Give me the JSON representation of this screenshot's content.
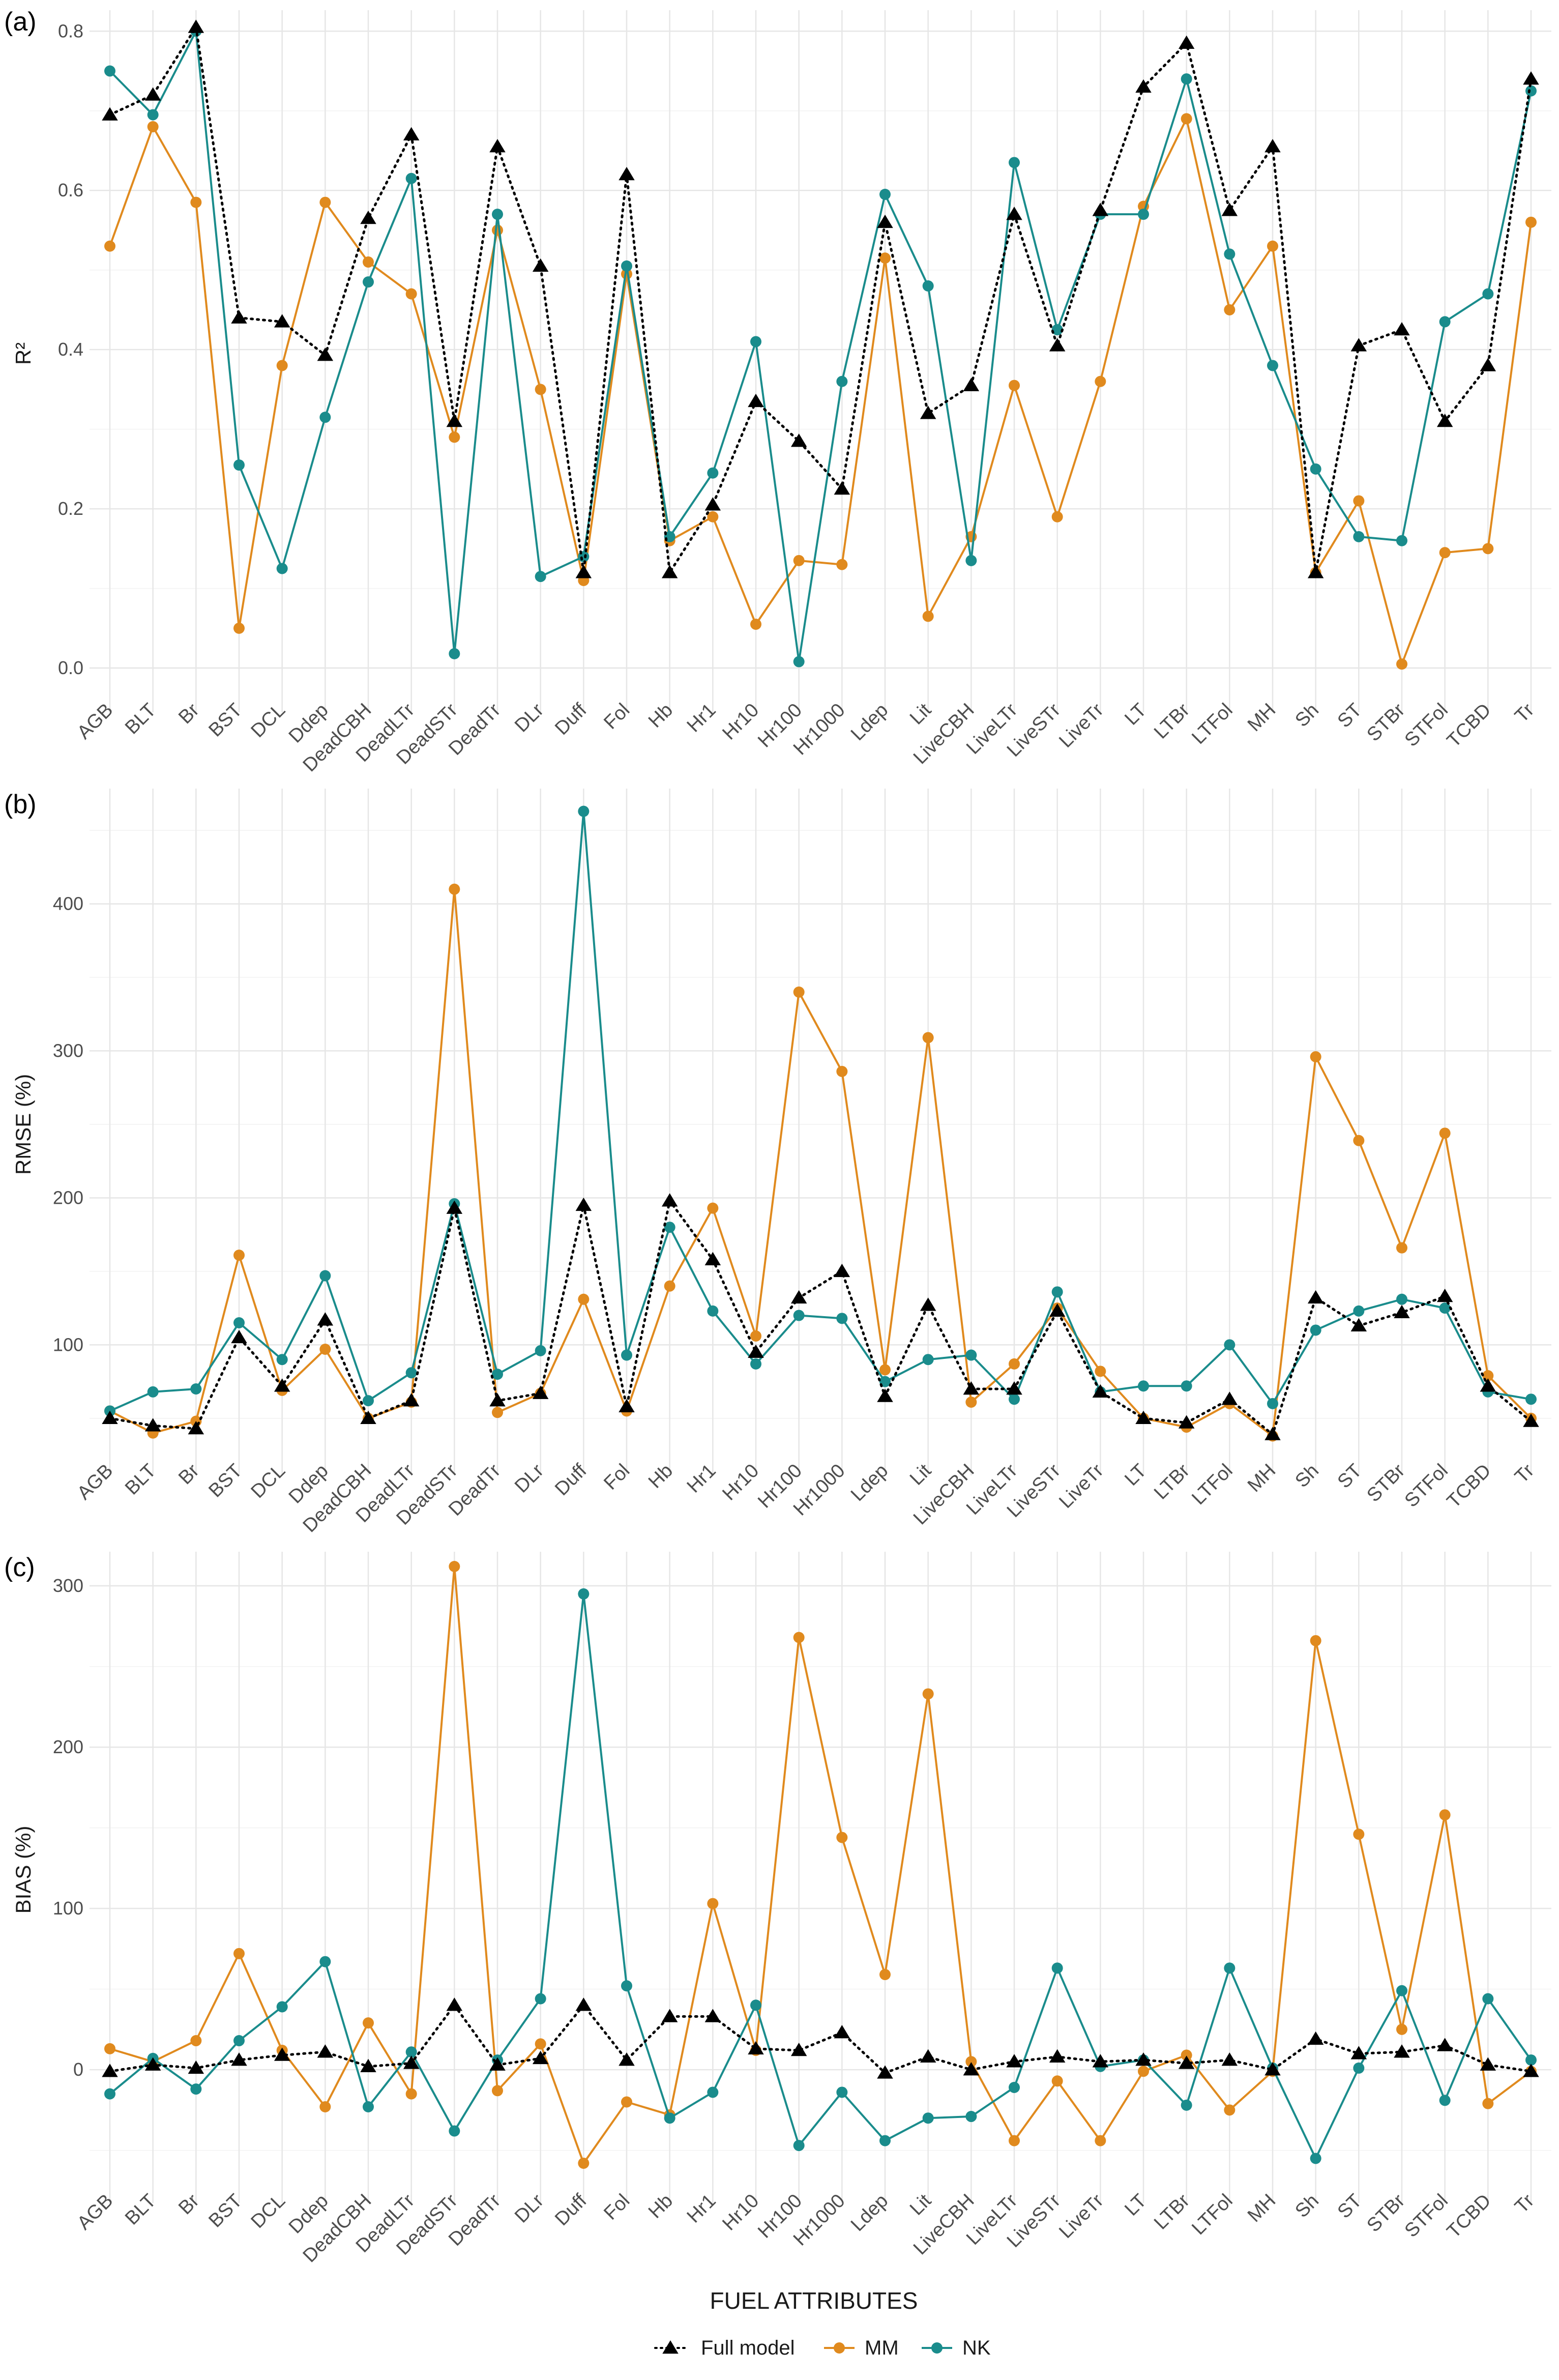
{
  "figure": {
    "x_axis_title": "FUEL ATTRIBUTES",
    "legend": [
      {
        "key": "full",
        "label": "Full model",
        "color": "#000000",
        "marker": "triangle",
        "line": "dotted"
      },
      {
        "key": "mm",
        "label": "MM",
        "color": "#E08A1E",
        "marker": "circle",
        "line": "solid"
      },
      {
        "key": "nk",
        "label": "NK",
        "color": "#1A8C8C",
        "marker": "circle",
        "line": "solid"
      }
    ]
  },
  "chart_data": [
    {
      "type": "line",
      "panel_label": "(a)",
      "title": "",
      "xlabel": "",
      "ylabel": "R²",
      "ylim": [
        -0.03,
        0.82
      ],
      "yticks": [
        0.0,
        0.2,
        0.4,
        0.6,
        0.8
      ],
      "ytick_labels": [
        "0.0",
        "0.2",
        "0.4",
        "0.6",
        "0.8"
      ],
      "categories": [
        "AGB",
        "BLT",
        "Br",
        "BST",
        "DCL",
        "Ddep",
        "DeadCBH",
        "DeadLTr",
        "DeadSTr",
        "DeadTr",
        "DLr",
        "Duff",
        "Fol",
        "Hb",
        "Hr1",
        "Hr10",
        "Hr100",
        "Hr1000",
        "Ldep",
        "Lit",
        "LiveCBH",
        "LiveLTr",
        "LiveSTr",
        "LiveTr",
        "LT",
        "LTBr",
        "LTFol",
        "MH",
        "Sh",
        "ST",
        "STBr",
        "STFol",
        "TCBD",
        "Tr"
      ],
      "series": [
        {
          "name": "Full model",
          "values": [
            0.695,
            0.72,
            0.805,
            0.44,
            0.435,
            0.393,
            0.565,
            0.67,
            0.31,
            0.655,
            0.505,
            0.12,
            0.62,
            0.12,
            0.205,
            0.335,
            0.285,
            0.225,
            0.56,
            0.32,
            0.355,
            0.57,
            0.405,
            0.575,
            0.73,
            0.785,
            0.575,
            0.655,
            0.12,
            0.405,
            0.425,
            0.31,
            0.38,
            0.74
          ]
        },
        {
          "name": "MM",
          "values": [
            0.53,
            0.68,
            0.585,
            0.05,
            0.38,
            0.585,
            0.51,
            0.47,
            0.29,
            0.55,
            0.35,
            0.11,
            0.495,
            0.16,
            0.19,
            0.055,
            0.135,
            0.13,
            0.515,
            0.065,
            0.165,
            0.355,
            0.19,
            0.36,
            0.58,
            0.69,
            0.45,
            0.53,
            0.12,
            0.21,
            0.005,
            0.145,
            0.15,
            0.56
          ]
        },
        {
          "name": "NK",
          "values": [
            0.75,
            0.695,
            0.8,
            0.255,
            0.125,
            0.315,
            0.485,
            0.615,
            0.018,
            0.57,
            0.115,
            0.14,
            0.505,
            0.165,
            0.245,
            0.41,
            0.008,
            0.36,
            0.595,
            0.48,
            0.135,
            0.635,
            0.425,
            0.57,
            0.57,
            0.74,
            0.52,
            0.38,
            0.25,
            0.165,
            0.16,
            0.435,
            0.47,
            0.725
          ]
        }
      ]
    },
    {
      "type": "line",
      "panel_label": "(b)",
      "title": "",
      "xlabel": "",
      "ylabel": "RMSE (%)",
      "ylim": [
        25,
        475
      ],
      "yticks": [
        100,
        200,
        300,
        400
      ],
      "ytick_labels": [
        "100",
        "200",
        "300",
        "400"
      ],
      "categories": [
        "AGB",
        "BLT",
        "Br",
        "BST",
        "DCL",
        "Ddep",
        "DeadCBH",
        "DeadLTr",
        "DeadSTr",
        "DeadTr",
        "DLr",
        "Duff",
        "Fol",
        "Hb",
        "Hr1",
        "Hr10",
        "Hr100",
        "Hr1000",
        "Ldep",
        "Lit",
        "LiveCBH",
        "LiveLTr",
        "LiveSTr",
        "LiveTr",
        "LT",
        "LTBr",
        "LTFol",
        "MH",
        "Sh",
        "ST",
        "STBr",
        "STFol",
        "TCBD",
        "Tr"
      ],
      "series": [
        {
          "name": "Full model",
          "values": [
            50,
            45,
            43,
            105,
            72,
            117,
            50,
            62,
            193,
            62,
            67,
            195,
            58,
            198,
            158,
            95,
            132,
            150,
            65,
            127,
            70,
            70,
            123,
            68,
            50,
            47,
            63,
            39,
            132,
            113,
            122,
            133,
            72,
            48
          ]
        },
        {
          "name": "MM",
          "values": [
            55,
            40,
            48,
            161,
            69,
            97,
            50,
            61,
            410,
            54,
            67,
            131,
            55,
            140,
            193,
            106,
            340,
            286,
            83,
            309,
            61,
            87,
            125,
            82,
            50,
            44,
            60,
            38,
            296,
            239,
            166,
            244,
            79,
            50
          ]
        },
        {
          "name": "NK",
          "values": [
            55,
            68,
            70,
            115,
            90,
            147,
            62,
            81,
            196,
            80,
            96,
            463,
            93,
            180,
            123,
            87,
            120,
            118,
            75,
            90,
            93,
            63,
            136,
            68,
            72,
            72,
            100,
            60,
            110,
            123,
            131,
            125,
            68,
            63
          ]
        }
      ]
    },
    {
      "type": "line",
      "panel_label": "(c)",
      "title": "",
      "xlabel": "FUEL ATTRIBUTES",
      "ylabel": "BIAS (%)",
      "ylim": [
        -70,
        318
      ],
      "yticks": [
        0,
        100,
        200,
        300
      ],
      "ytick_labels": [
        "0",
        "100",
        "200",
        "300"
      ],
      "categories": [
        "AGB",
        "BLT",
        "Br",
        "BST",
        "DCL",
        "Ddep",
        "DeadCBH",
        "DeadLTr",
        "DeadSTr",
        "DeadTr",
        "DLr",
        "Duff",
        "Fol",
        "Hb",
        "Hr1",
        "Hr10",
        "Hr100",
        "Hr1000",
        "Ldep",
        "Lit",
        "LiveCBH",
        "LiveLTr",
        "LiveSTr",
        "LiveTr",
        "LT",
        "LTBr",
        "LTFol",
        "MH",
        "Sh",
        "ST",
        "STBr",
        "STFol",
        "TCBD",
        "Tr"
      ],
      "series": [
        {
          "name": "Full model",
          "values": [
            -1,
            3,
            1,
            6,
            9,
            11,
            2,
            4,
            40,
            3,
            7,
            40,
            6,
            33,
            33,
            13,
            12,
            23,
            -2,
            8,
            0,
            5,
            8,
            5,
            6,
            4,
            6,
            0,
            19,
            10,
            11,
            15,
            3,
            -1
          ]
        },
        {
          "name": "MM",
          "values": [
            13,
            5,
            18,
            72,
            12,
            -23,
            29,
            -15,
            312,
            -13,
            16,
            -58,
            -20,
            -28,
            103,
            12,
            268,
            144,
            59,
            233,
            5,
            -44,
            -7,
            -44,
            -1,
            9,
            -25,
            -1,
            266,
            146,
            25,
            158,
            -21,
            -1
          ]
        },
        {
          "name": "NK",
          "values": [
            -15,
            7,
            -12,
            18,
            39,
            67,
            -23,
            11,
            -38,
            6,
            44,
            295,
            52,
            -30,
            -14,
            40,
            -47,
            -14,
            -44,
            -30,
            -29,
            -11,
            63,
            2,
            6,
            -22,
            63,
            1,
            -55,
            1,
            49,
            -19,
            44,
            6
          ]
        }
      ]
    }
  ]
}
